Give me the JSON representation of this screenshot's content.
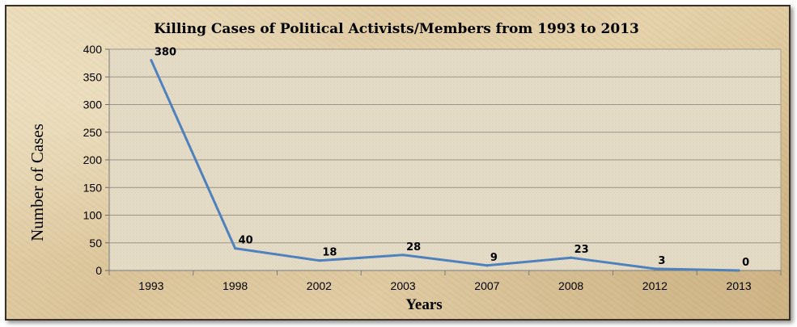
{
  "chart_data": {
    "type": "line",
    "title": "Killing Cases of Political Activists/Members from 1993 to 2013",
    "xlabel": "Years",
    "ylabel": "Number of Cases",
    "categories": [
      "1993",
      "1998",
      "2002",
      "2003",
      "2007",
      "2008",
      "2012",
      "2013"
    ],
    "series": [
      {
        "values": [
          380,
          40,
          18,
          28,
          9,
          23,
          3,
          0
        ]
      }
    ],
    "data_labels": [
      "380",
      "40",
      "18",
      "28",
      "9",
      "23",
      "3",
      "0"
    ],
    "ylim": [
      0,
      400
    ],
    "yticks": [
      0,
      50,
      100,
      150,
      200,
      250,
      300,
      350,
      400
    ],
    "ytick_labels": [
      "0",
      "50",
      "100",
      "150",
      "200",
      "250",
      "300",
      "350",
      "400"
    ],
    "grid": true,
    "legend": "none",
    "line_color": "#4f81bd"
  }
}
